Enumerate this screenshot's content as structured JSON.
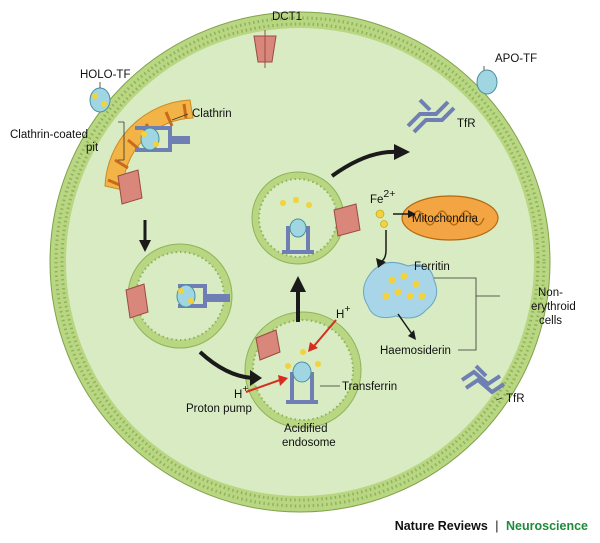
{
  "labels": {
    "dct1": "DCT1",
    "apo_tf": "APO-TF",
    "holo_tf": "HOLO-TF",
    "clathrin": "Clathrin",
    "clathrin_coated_pit_line1": "Clathrin-coated",
    "clathrin_coated_pit_line2": "pit",
    "tfr_top": "TfR",
    "fe2": "Fe",
    "fe2_sup": "2+",
    "mitochondria": "Mitochondria",
    "ferritin": "Ferritin",
    "non_erythroid_line1": "Non-",
    "non_erythroid_line2": "erythroid",
    "non_erythroid_line3": "cells",
    "haemosiderin": "Haemosiderin",
    "h_plus_top": "H",
    "h_plus_left": "H",
    "plus_sup": "+",
    "transferrin": "Transferrin",
    "proton_pump": "Proton pump",
    "acidified_line1": "Acidified",
    "acidified_line2": "endosome",
    "tfr_bottom": "TfR"
  },
  "credit": {
    "journal": "Nature Reviews",
    "separator": "|",
    "section": "Neuroscience"
  },
  "colors": {
    "cytoplasm": "#d8ebc2",
    "membrane_head": "#b7d37f",
    "clathrin_coat": "#f3b447",
    "receptor": "#6f7fb4",
    "transferrin": "#9fd6e2",
    "iron": "#f3d23c",
    "dct1": "#d9867b",
    "mitochondria": "#f2a542",
    "ferritin_blob": "#a9d5e8",
    "arrow": "#1a1a1a",
    "proton_arrow": "#d62d20",
    "brand": "#1f8a3a"
  }
}
